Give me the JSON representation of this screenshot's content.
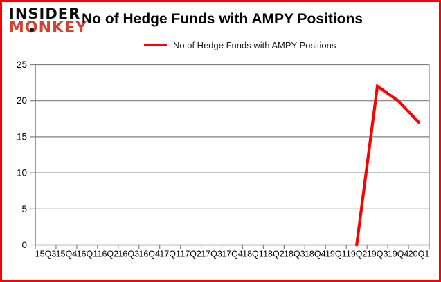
{
  "page": {
    "background": "#ffffff",
    "border_color": "#fb0202"
  },
  "logo": {
    "line1": "INSIDER",
    "line2_pre": "M",
    "line2_o": "O",
    "line2_post": "NKEY",
    "color_line1": "#0d0d0d",
    "color_line2": "#d6402c"
  },
  "header": {
    "title": "No of Hedge Funds with AMPY Positions"
  },
  "legend": {
    "label": "No of Hedge Funds with AMPY Positions",
    "swatch_color": "#fe0000"
  },
  "chart_data": {
    "type": "line",
    "title": "No of Hedge Funds with AMPY Positions",
    "categories": [
      "15Q3",
      "15Q4",
      "16Q1",
      "16Q2",
      "16Q3",
      "16Q4",
      "17Q1",
      "17Q2",
      "17Q3",
      "17Q4",
      "18Q1",
      "18Q2",
      "18Q3",
      "18Q4",
      "19Q1",
      "19Q2",
      "19Q3",
      "19Q4",
      "20Q1"
    ],
    "series": [
      {
        "name": "No of Hedge Funds with AMPY Positions",
        "color": "#fe0000",
        "values": [
          null,
          null,
          null,
          null,
          null,
          null,
          null,
          null,
          null,
          null,
          null,
          null,
          null,
          null,
          null,
          0,
          22,
          20,
          17
        ]
      }
    ],
    "xlabel": "",
    "ylabel": "",
    "ylim": [
      0,
      25
    ],
    "yticks": [
      0,
      5,
      10,
      15,
      20,
      25
    ],
    "grid": true,
    "legend_position": "top",
    "grid_color": "#808080",
    "axis_color": "#808080",
    "tick_label_color": "#000000"
  }
}
